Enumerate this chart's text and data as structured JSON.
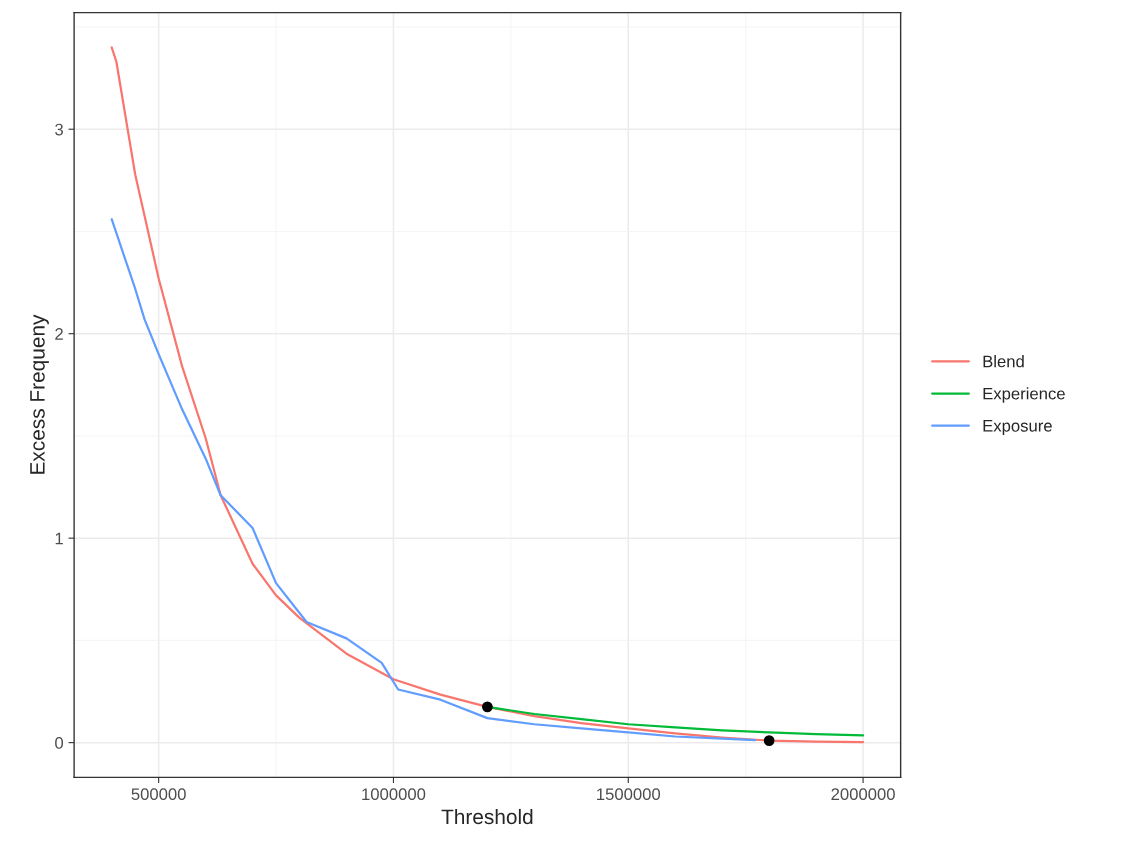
{
  "chart_data": {
    "type": "line",
    "xlabel": "Threshold",
    "ylabel": "Excess Frequeny",
    "xlim": [
      320000,
      2080000
    ],
    "xticks": [
      500000,
      1000000,
      1500000,
      2000000
    ],
    "ylim": [
      -0.17,
      3.57
    ],
    "yticks": [
      0,
      1,
      2,
      3
    ],
    "grid": true,
    "legend": "right",
    "marker": "none",
    "line_style": "solid",
    "series": [
      {
        "name": "Blend",
        "color": "#f8766d",
        "x": [
          400000,
          410000,
          450000,
          500000,
          550000,
          600000,
          632000,
          700000,
          750000,
          800000,
          900000,
          1000000,
          1100000,
          1200000,
          1300000,
          1400000,
          1500000,
          1600000,
          1700000,
          1800000,
          1900000,
          2000000
        ],
        "values": [
          3.4,
          3.33,
          2.78,
          2.27,
          1.84,
          1.49,
          1.21,
          0.875,
          0.72,
          0.61,
          0.435,
          0.31,
          0.235,
          0.175,
          0.13,
          0.095,
          0.07,
          0.045,
          0.025,
          0.01,
          0.005,
          0.003
        ]
      },
      {
        "name": "Experience",
        "color": "#00ba38",
        "x": [
          1200000,
          1300000,
          1400000,
          1500000,
          1600000,
          1700000,
          1800000,
          1900000,
          2000000
        ],
        "values": [
          0.175,
          0.14,
          0.115,
          0.09,
          0.075,
          0.06,
          0.05,
          0.042,
          0.035
        ]
      },
      {
        "name": "Exposure",
        "color": "#619cff",
        "x": [
          400000,
          450000,
          470000,
          500000,
          550000,
          600000,
          632000,
          700000,
          750000,
          815000,
          900000,
          975000,
          1010000,
          1100000,
          1200000,
          1300000,
          1400000,
          1500000,
          1600000,
          1700000,
          1770000
        ],
        "values": [
          2.56,
          2.22,
          2.07,
          1.9,
          1.63,
          1.39,
          1.21,
          1.05,
          0.78,
          0.59,
          0.51,
          0.39,
          0.26,
          0.21,
          0.12,
          0.09,
          0.07,
          0.05,
          0.03,
          0.02,
          0.012
        ]
      },
      {
        "type": "scatter",
        "color": "#000000",
        "marker": "circle",
        "x": [
          1200000,
          1800000
        ],
        "values": [
          0.175,
          0.01
        ]
      }
    ]
  }
}
